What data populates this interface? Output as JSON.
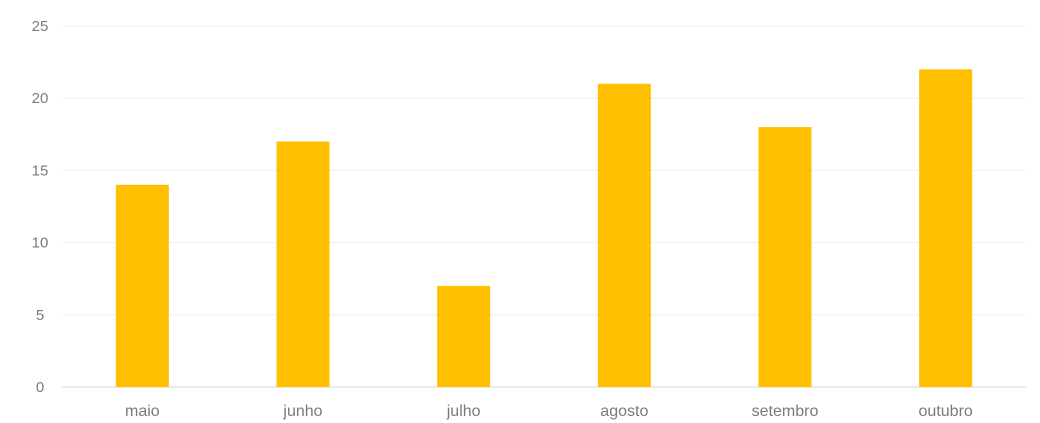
{
  "chart_data": {
    "type": "bar",
    "categories": [
      "maio",
      "junho",
      "julho",
      "agosto",
      "setembro",
      "outubro"
    ],
    "values": [
      14,
      17,
      7,
      21,
      18,
      22
    ],
    "title": "",
    "xlabel": "",
    "ylabel": "",
    "ylim": [
      0,
      25
    ],
    "yticks": [
      0,
      5,
      10,
      15,
      20,
      25
    ],
    "grid": true,
    "legend": "none",
    "bar_color": "#FFC000"
  }
}
